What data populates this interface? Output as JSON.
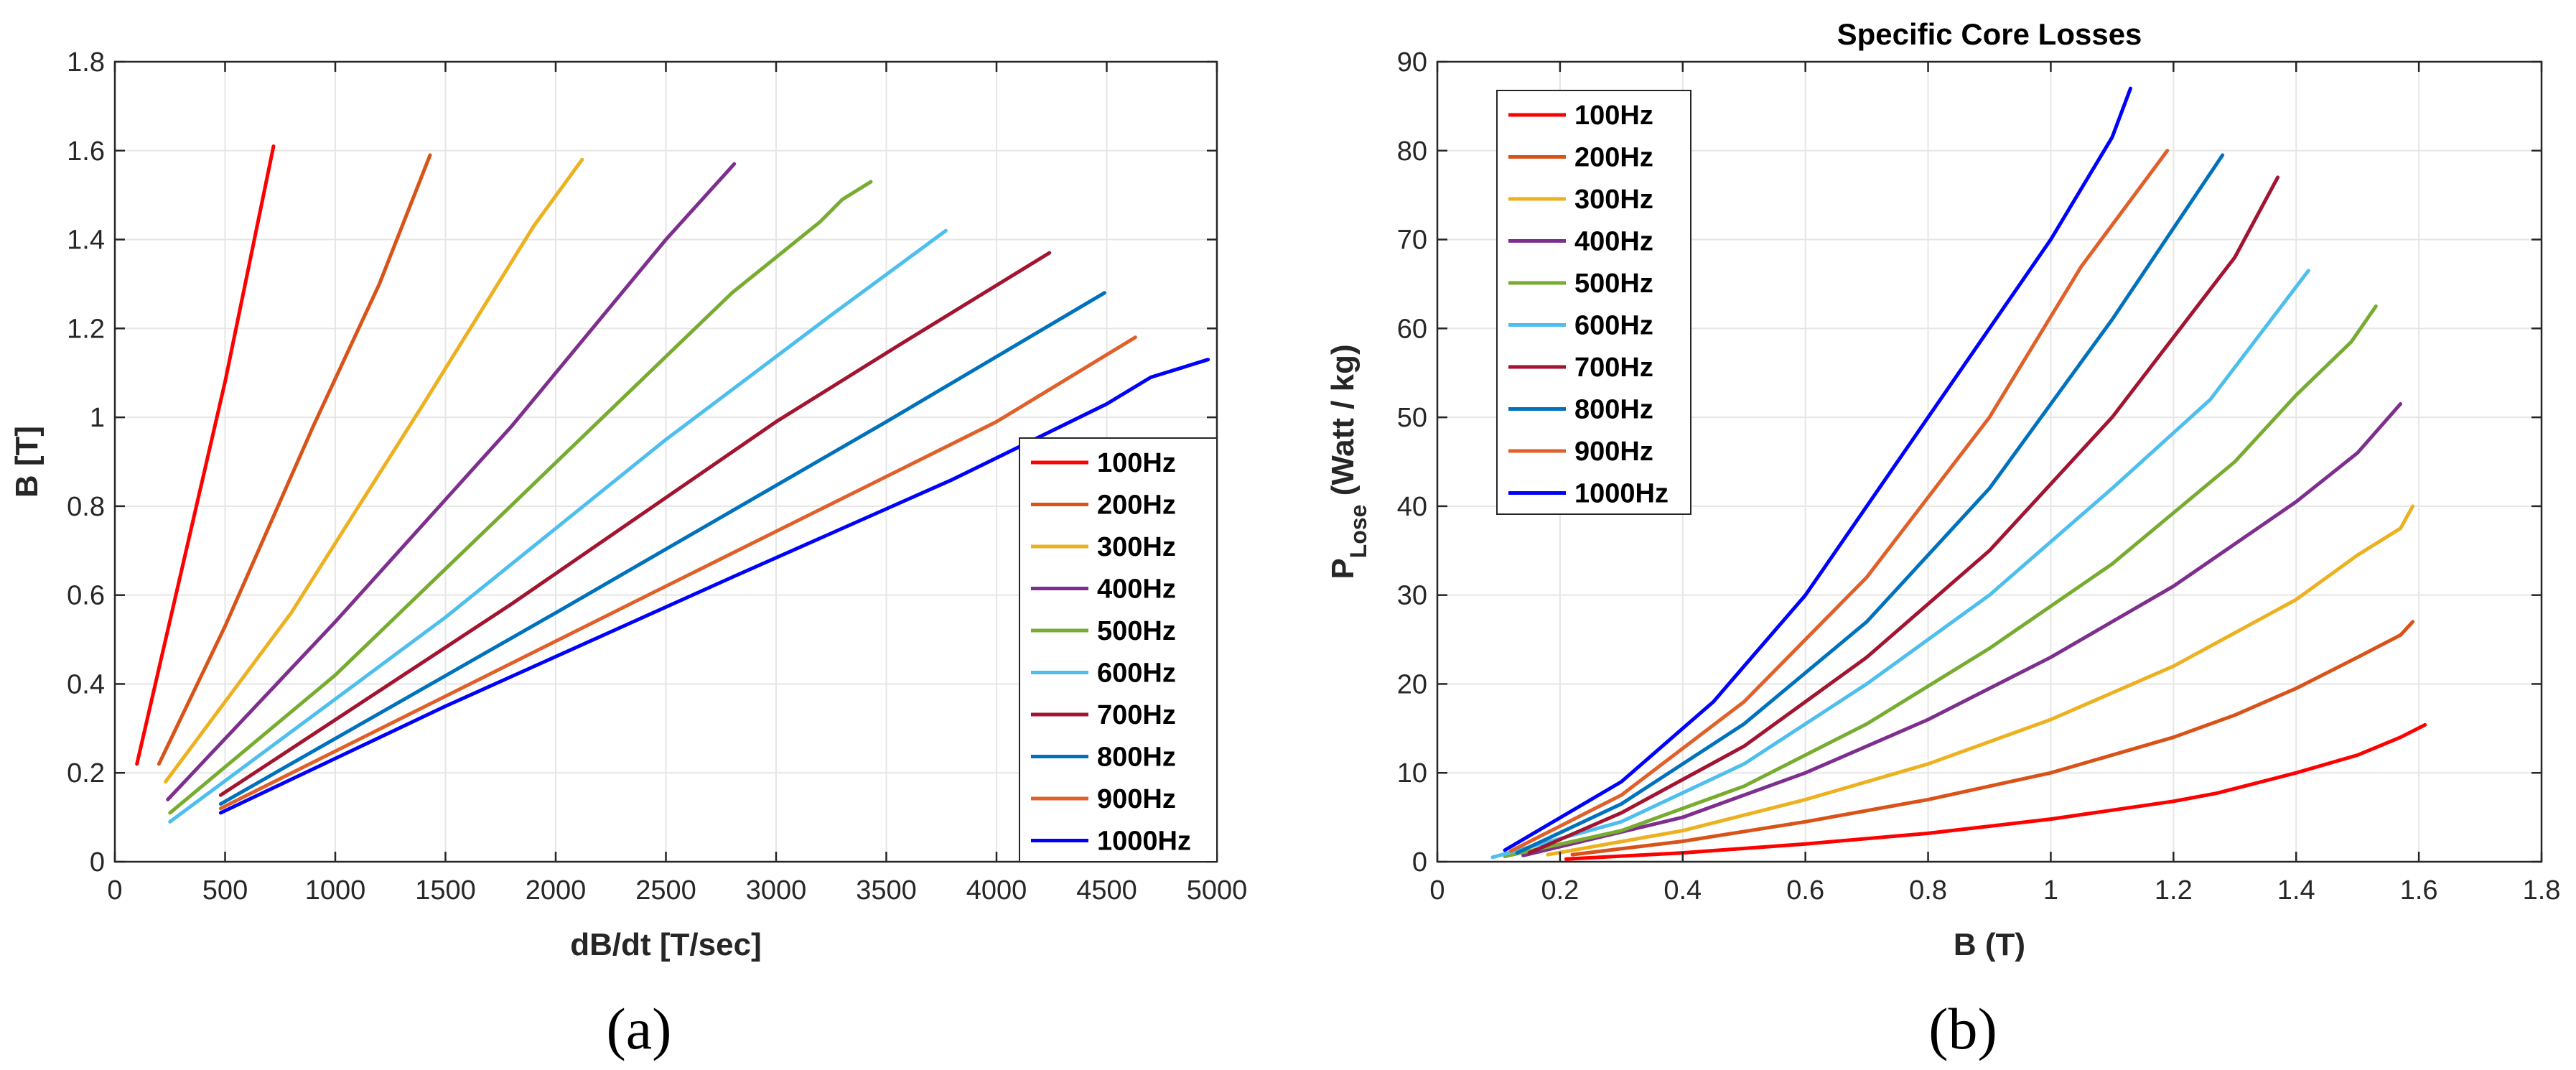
{
  "colors": {
    "100Hz": "#ff0000",
    "200Hz": "#d95319",
    "300Hz": "#edb120",
    "400Hz": "#7e2f8e",
    "500Hz": "#77ac30",
    "600Hz": "#4dbeee",
    "700Hz": "#a2142f",
    "800Hz": "#0072bd",
    "900Hz": "#e0602a",
    "1000Hz": "#0000ff"
  },
  "chart_data": [
    {
      "type": "line",
      "caption": "(a)",
      "title": "",
      "xlabel": "dB/dt [T/sec]",
      "ylabel": "B [T]",
      "xlim": [
        0,
        5000
      ],
      "ylim": [
        0,
        1.8
      ],
      "xticks": [
        "0",
        "500",
        "1000",
        "1500",
        "2000",
        "2500",
        "3000",
        "3500",
        "4000",
        "4500",
        "5000"
      ],
      "yticks": [
        "0",
        "0.2",
        "0.4",
        "0.6",
        "0.8",
        "1",
        "1.2",
        "1.4",
        "1.6",
        "1.8"
      ],
      "grid": true,
      "legend_position": "bottom-right",
      "series": [
        {
          "name": "100Hz",
          "x": [
            100,
            300,
            500,
            720
          ],
          "y": [
            0.22,
            0.65,
            1.08,
            1.61
          ]
        },
        {
          "name": "200Hz",
          "x": [
            200,
            500,
            900,
            1200,
            1430
          ],
          "y": [
            0.22,
            0.53,
            0.98,
            1.3,
            1.59
          ]
        },
        {
          "name": "300Hz",
          "x": [
            230,
            800,
            1400,
            1900,
            2120
          ],
          "y": [
            0.18,
            0.56,
            1.03,
            1.43,
            1.58
          ]
        },
        {
          "name": "400Hz",
          "x": [
            240,
            1000,
            1800,
            2500,
            2810
          ],
          "y": [
            0.14,
            0.54,
            0.98,
            1.4,
            1.57
          ]
        },
        {
          "name": "500Hz",
          "x": [
            250,
            1000,
            1900,
            2800,
            3200,
            3300,
            3430
          ],
          "y": [
            0.11,
            0.42,
            0.85,
            1.28,
            1.44,
            1.49,
            1.53
          ]
        },
        {
          "name": "600Hz",
          "x": [
            250,
            1500,
            2500,
            3250,
            3770
          ],
          "y": [
            0.09,
            0.55,
            0.95,
            1.23,
            1.42
          ]
        },
        {
          "name": "700Hz",
          "x": [
            480,
            1800,
            3000,
            3550,
            4240
          ],
          "y": [
            0.15,
            0.58,
            0.99,
            1.16,
            1.37
          ]
        },
        {
          "name": "800Hz",
          "x": [
            480,
            2000,
            3500,
            4490
          ],
          "y": [
            0.13,
            0.56,
            0.99,
            1.28
          ]
        },
        {
          "name": "900Hz",
          "x": [
            480,
            2500,
            4000,
            4630
          ],
          "y": [
            0.12,
            0.62,
            0.99,
            1.18
          ]
        },
        {
          "name": "1000Hz",
          "x": [
            480,
            1500,
            2800,
            3800,
            4500,
            4700,
            4960
          ],
          "y": [
            0.11,
            0.35,
            0.64,
            0.86,
            1.03,
            1.09,
            1.13
          ]
        }
      ]
    },
    {
      "type": "line",
      "caption": "(b)",
      "title": "Specific Core Losses",
      "xlabel": "B (T)",
      "ylabel": "P",
      "ylabel_subscript": "Lose",
      "ylabel_suffix": " (Watt / kg)",
      "xlim": [
        0,
        1.8
      ],
      "ylim": [
        0,
        90
      ],
      "xticks": [
        "0",
        "0.2",
        "0.4",
        "0.6",
        "0.8",
        "1",
        "1.2",
        "1.4",
        "1.6",
        "1.8"
      ],
      "yticks": [
        "0",
        "10",
        "20",
        "30",
        "40",
        "50",
        "60",
        "70",
        "80",
        "90"
      ],
      "grid": true,
      "legend_position": "top-left",
      "series": [
        {
          "name": "100Hz",
          "x": [
            0.21,
            0.4,
            0.6,
            0.8,
            1.0,
            1.2,
            1.27,
            1.4,
            1.5,
            1.57,
            1.61
          ],
          "y": [
            0.3,
            1.0,
            2.0,
            3.2,
            4.8,
            6.8,
            7.7,
            10.0,
            12.0,
            14.0,
            15.4
          ]
        },
        {
          "name": "200Hz",
          "x": [
            0.22,
            0.4,
            0.6,
            0.8,
            1.0,
            1.2,
            1.3,
            1.4,
            1.5,
            1.57,
            1.59
          ],
          "y": [
            0.8,
            2.3,
            4.5,
            7.0,
            10.0,
            14.0,
            16.5,
            19.5,
            23.0,
            25.5,
            27.0
          ]
        },
        {
          "name": "300Hz",
          "x": [
            0.18,
            0.4,
            0.6,
            0.8,
            1.0,
            1.2,
            1.4,
            1.5,
            1.57,
            1.59
          ],
          "y": [
            0.8,
            3.5,
            7.0,
            11.0,
            16.0,
            22.0,
            29.5,
            34.5,
            37.5,
            40.0
          ]
        },
        {
          "name": "400Hz",
          "x": [
            0.14,
            0.4,
            0.6,
            0.8,
            1.0,
            1.2,
            1.4,
            1.5,
            1.57
          ],
          "y": [
            0.7,
            5.0,
            10.0,
            16.0,
            23.0,
            31.0,
            40.5,
            46.0,
            51.5
          ]
        },
        {
          "name": "500Hz",
          "x": [
            0.11,
            0.3,
            0.5,
            0.7,
            0.9,
            1.1,
            1.3,
            1.4,
            1.49,
            1.53
          ],
          "y": [
            0.6,
            3.5,
            8.5,
            15.5,
            24.0,
            33.5,
            45.0,
            52.5,
            58.5,
            62.5
          ]
        },
        {
          "name": "600Hz",
          "x": [
            0.09,
            0.3,
            0.5,
            0.7,
            0.9,
            1.1,
            1.26,
            1.42
          ],
          "y": [
            0.5,
            4.5,
            11.0,
            20.0,
            30.0,
            42.0,
            52.0,
            66.5
          ]
        },
        {
          "name": "700Hz",
          "x": [
            0.15,
            0.3,
            0.5,
            0.7,
            0.9,
            1.1,
            1.3,
            1.37
          ],
          "y": [
            1.0,
            5.5,
            13.0,
            23.0,
            35.0,
            50.0,
            68.0,
            77.0
          ]
        },
        {
          "name": "800Hz",
          "x": [
            0.13,
            0.3,
            0.5,
            0.7,
            0.9,
            1.1,
            1.28
          ],
          "y": [
            1.0,
            6.5,
            15.5,
            27.0,
            42.0,
            61.0,
            79.5
          ]
        },
        {
          "name": "900Hz",
          "x": [
            0.12,
            0.3,
            0.5,
            0.7,
            0.9,
            1.05,
            1.19
          ],
          "y": [
            1.2,
            7.5,
            18.0,
            32.0,
            50.0,
            67.0,
            80.0
          ]
        },
        {
          "name": "1000Hz",
          "x": [
            0.11,
            0.3,
            0.45,
            0.6,
            0.8,
            1.0,
            1.1,
            1.13
          ],
          "y": [
            1.3,
            9.0,
            18.0,
            30.0,
            50.0,
            70.0,
            81.5,
            87.0
          ]
        }
      ]
    }
  ]
}
